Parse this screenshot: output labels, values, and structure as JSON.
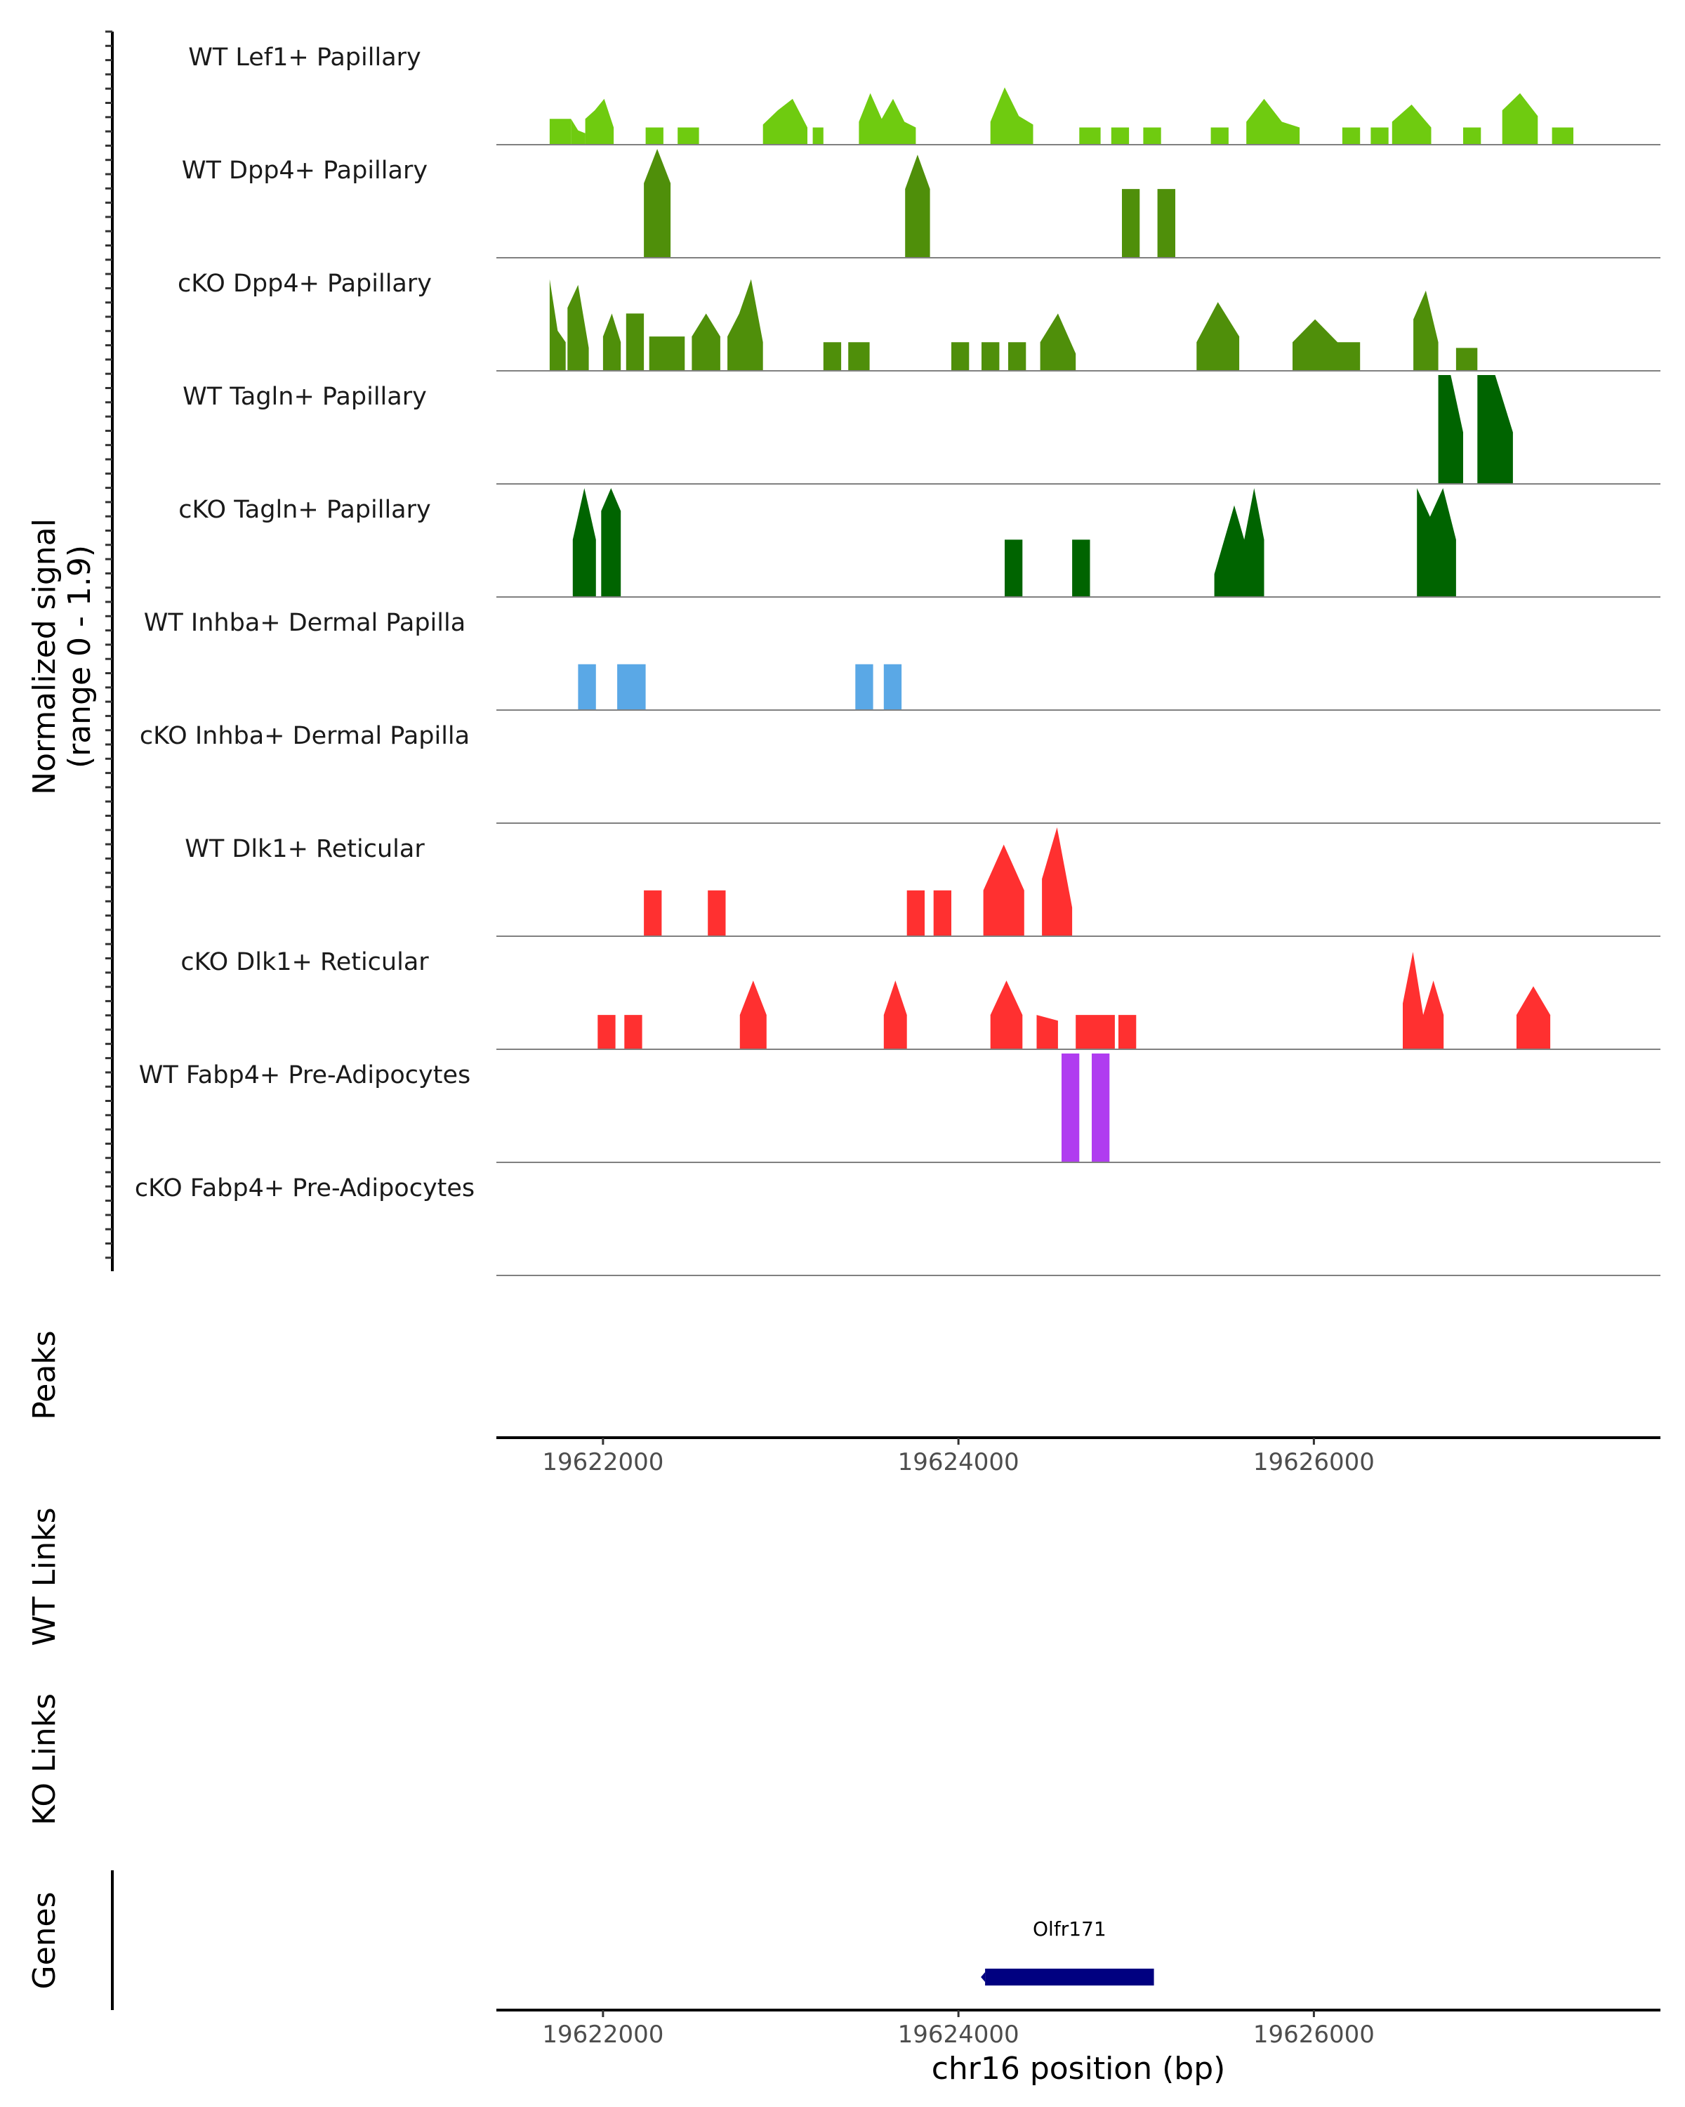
{
  "chart_data": {
    "type": "area",
    "title": "",
    "chromosome": "chr16",
    "xlabel": "chr16 position (bp)",
    "xlim": [
      19621400,
      19627950
    ],
    "x_ticks": [
      19622000,
      19624000,
      19626000
    ],
    "x_tick_labels": [
      "19622000",
      "19624000",
      "19626000"
    ],
    "ylabel_line1": "Normalized signal",
    "ylabel_line2": "(range 0 - 1.9)",
    "ylim": [
      0,
      1.9
    ],
    "panel_labels": {
      "peaks": "Peaks",
      "wt_links": "WT Links",
      "ko_links": "KO Links",
      "genes": "Genes"
    },
    "series": [
      {
        "name": "WT Lef1+ Papillary",
        "color": "#6fcb10",
        "segments": [
          {
            "start": 19621700,
            "end": 19621820,
            "values": [
              0.45,
              0.45,
              0.45
            ]
          },
          {
            "start": 19621820,
            "end": 19621900,
            "values": [
              0.45,
              0.25,
              0.2
            ]
          },
          {
            "start": 19621900,
            "end": 19622060,
            "values": [
              0.45,
              0.6,
              0.8,
              0.3
            ]
          },
          {
            "start": 19622240,
            "end": 19622340,
            "values": [
              0.3,
              0.3
            ]
          },
          {
            "start": 19622420,
            "end": 19622540,
            "values": [
              0.3,
              0.3
            ]
          },
          {
            "start": 19622900,
            "end": 19623150,
            "values": [
              0.35,
              0.6,
              0.8,
              0.3
            ]
          },
          {
            "start": 19623180,
            "end": 19623240,
            "values": [
              0.3,
              0.3
            ]
          },
          {
            "start": 19623440,
            "end": 19623760,
            "values": [
              0.4,
              0.9,
              0.45,
              0.8,
              0.4,
              0.3
            ]
          },
          {
            "start": 19624180,
            "end": 19624420,
            "values": [
              0.4,
              1.0,
              0.5,
              0.35
            ]
          },
          {
            "start": 19624680,
            "end": 19624800,
            "values": [
              0.3,
              0.3
            ]
          },
          {
            "start": 19624860,
            "end": 19624960,
            "values": [
              0.3,
              0.3
            ]
          },
          {
            "start": 19625040,
            "end": 19625140,
            "values": [
              0.3,
              0.3
            ]
          },
          {
            "start": 19625420,
            "end": 19625520,
            "values": [
              0.3,
              0.3
            ]
          },
          {
            "start": 19625620,
            "end": 19625920,
            "values": [
              0.4,
              0.8,
              0.4,
              0.3
            ]
          },
          {
            "start": 19626160,
            "end": 19626260,
            "values": [
              0.3,
              0.3
            ]
          },
          {
            "start": 19626320,
            "end": 19626420,
            "values": [
              0.3,
              0.3
            ]
          },
          {
            "start": 19626440,
            "end": 19626660,
            "values": [
              0.4,
              0.7,
              0.3
            ]
          },
          {
            "start": 19626840,
            "end": 19626940,
            "values": [
              0.3,
              0.3
            ]
          },
          {
            "start": 19627060,
            "end": 19627260,
            "values": [
              0.6,
              0.9,
              0.5
            ]
          },
          {
            "start": 19627340,
            "end": 19627460,
            "values": [
              0.3,
              0.3
            ]
          }
        ]
      },
      {
        "name": "WT Dpp4+ Papillary",
        "color": "#4f8f0a",
        "segments": [
          {
            "start": 19622230,
            "end": 19622380,
            "values": [
              1.3,
              1.9,
              1.3
            ]
          },
          {
            "start": 19623700,
            "end": 19623840,
            "values": [
              1.2,
              1.8,
              1.2
            ]
          },
          {
            "start": 19624920,
            "end": 19625020,
            "values": [
              1.2,
              1.2
            ]
          },
          {
            "start": 19625120,
            "end": 19625220,
            "values": [
              1.2,
              1.2
            ]
          }
        ]
      },
      {
        "name": "cKO Dpp4+ Papillary",
        "color": "#4f8f0a",
        "segments": [
          {
            "start": 19621700,
            "end": 19621790,
            "values": [
              1.6,
              0.7,
              0.5
            ]
          },
          {
            "start": 19621800,
            "end": 19621920,
            "values": [
              1.1,
              1.5,
              0.4
            ]
          },
          {
            "start": 19622000,
            "end": 19622100,
            "values": [
              0.6,
              1.0,
              0.5
            ]
          },
          {
            "start": 19622130,
            "end": 19622230,
            "values": [
              1.0,
              1.0
            ]
          },
          {
            "start": 19622260,
            "end": 19622460,
            "values": [
              0.6,
              0.6
            ]
          },
          {
            "start": 19622500,
            "end": 19622660,
            "values": [
              0.6,
              1.0,
              0.6
            ]
          },
          {
            "start": 19622700,
            "end": 19622900,
            "values": [
              0.6,
              1.0,
              1.6,
              0.5
            ]
          },
          {
            "start": 19623240,
            "end": 19623340,
            "values": [
              0.5,
              0.5
            ]
          },
          {
            "start": 19623380,
            "end": 19623500,
            "values": [
              0.5,
              0.5
            ]
          },
          {
            "start": 19623960,
            "end": 19624060,
            "values": [
              0.5,
              0.5
            ]
          },
          {
            "start": 19624130,
            "end": 19624230,
            "values": [
              0.5,
              0.5
            ]
          },
          {
            "start": 19624280,
            "end": 19624380,
            "values": [
              0.5,
              0.5
            ]
          },
          {
            "start": 19624460,
            "end": 19624660,
            "values": [
              0.5,
              1.0,
              0.3
            ]
          },
          {
            "start": 19625340,
            "end": 19625580,
            "values": [
              0.5,
              1.2,
              0.6
            ]
          },
          {
            "start": 19625880,
            "end": 19626260,
            "values": [
              0.5,
              0.9,
              0.5,
              0.5
            ]
          },
          {
            "start": 19626560,
            "end": 19626700,
            "values": [
              0.9,
              1.4,
              0.5
            ]
          },
          {
            "start": 19626800,
            "end": 19626920,
            "values": [
              0.4,
              0.4
            ]
          }
        ]
      },
      {
        "name": "WT Tagln+ Papillary",
        "color": "#006400",
        "segments": [
          {
            "start": 19626700,
            "end": 19626840,
            "values": [
              1.9,
              1.9,
              0.9
            ]
          },
          {
            "start": 19626920,
            "end": 19627120,
            "values": [
              1.9,
              1.9,
              0.9
            ]
          }
        ]
      },
      {
        "name": "cKO Tagln+ Papillary",
        "color": "#006400",
        "segments": [
          {
            "start": 19621830,
            "end": 19621960,
            "values": [
              1.0,
              1.9,
              1.0
            ]
          },
          {
            "start": 19621990,
            "end": 19622100,
            "values": [
              1.5,
              1.9,
              1.5
            ]
          },
          {
            "start": 19624260,
            "end": 19624360,
            "values": [
              1.0,
              1.0
            ]
          },
          {
            "start": 19624640,
            "end": 19624740,
            "values": [
              1.0,
              1.0
            ]
          },
          {
            "start": 19625440,
            "end": 19625720,
            "values": [
              0.4,
              1.0,
              1.6,
              1.0,
              1.9,
              1.0
            ]
          },
          {
            "start": 19626580,
            "end": 19626800,
            "values": [
              1.9,
              1.4,
              1.9,
              1.0
            ]
          }
        ]
      },
      {
        "name": "WT Inhba+ Dermal Papilla",
        "color": "#5aa8e6",
        "segments": [
          {
            "start": 19621860,
            "end": 19621960,
            "values": [
              0.8,
              0.8
            ]
          },
          {
            "start": 19622080,
            "end": 19622240,
            "values": [
              0.8,
              0.8
            ]
          },
          {
            "start": 19623420,
            "end": 19623520,
            "values": [
              0.8,
              0.8
            ]
          },
          {
            "start": 19623580,
            "end": 19623680,
            "values": [
              0.8,
              0.8
            ]
          }
        ]
      },
      {
        "name": "cKO Inhba+ Dermal Papilla",
        "color": "#5aa8e6",
        "segments": []
      },
      {
        "name": "WT Dlk1+ Reticular",
        "color": "#ff3030",
        "segments": [
          {
            "start": 19622230,
            "end": 19622330,
            "values": [
              0.8,
              0.8
            ]
          },
          {
            "start": 19622590,
            "end": 19622690,
            "values": [
              0.8,
              0.8
            ]
          },
          {
            "start": 19623710,
            "end": 19623810,
            "values": [
              0.8,
              0.8
            ]
          },
          {
            "start": 19623860,
            "end": 19623960,
            "values": [
              0.8,
              0.8
            ]
          },
          {
            "start": 19624140,
            "end": 19624370,
            "values": [
              0.8,
              1.6,
              0.8
            ]
          },
          {
            "start": 19624470,
            "end": 19624640,
            "values": [
              1.0,
              1.9,
              0.5
            ]
          }
        ]
      },
      {
        "name": "cKO Dlk1+ Reticular",
        "color": "#ff3030",
        "segments": [
          {
            "start": 19621970,
            "end": 19622070,
            "values": [
              0.6,
              0.6
            ]
          },
          {
            "start": 19622120,
            "end": 19622220,
            "values": [
              0.6,
              0.6
            ]
          },
          {
            "start": 19622770,
            "end": 19622920,
            "values": [
              0.6,
              1.2,
              0.6
            ]
          },
          {
            "start": 19623580,
            "end": 19623710,
            "values": [
              0.6,
              1.2,
              0.6
            ]
          },
          {
            "start": 19624180,
            "end": 19624360,
            "values": [
              0.6,
              1.2,
              0.6
            ]
          },
          {
            "start": 19624440,
            "end": 19624560,
            "values": [
              0.6,
              0.5
            ]
          },
          {
            "start": 19624660,
            "end": 19624880,
            "values": [
              0.6,
              0.6,
              0.6
            ]
          },
          {
            "start": 19624900,
            "end": 19625000,
            "values": [
              0.6,
              0.6
            ]
          },
          {
            "start": 19626500,
            "end": 19626730,
            "values": [
              0.8,
              1.7,
              0.6,
              1.2,
              0.6
            ]
          },
          {
            "start": 19627140,
            "end": 19627330,
            "values": [
              0.6,
              1.1,
              0.6
            ]
          }
        ]
      },
      {
        "name": "WT Fabp4+ Pre-Adipocytes",
        "color": "#b03cf0",
        "segments": [
          {
            "start": 19624580,
            "end": 19624680,
            "values": [
              1.9,
              1.9
            ]
          },
          {
            "start": 19624750,
            "end": 19624850,
            "values": [
              1.9,
              1.9
            ]
          }
        ]
      },
      {
        "name": "cKO Fabp4+ Pre-Adipocytes",
        "color": "#b03cf0",
        "segments": []
      }
    ],
    "genes": [
      {
        "name": "Olfr171",
        "start": 19624150,
        "end": 19625100,
        "strand": "-",
        "color": "#000080"
      }
    ]
  }
}
